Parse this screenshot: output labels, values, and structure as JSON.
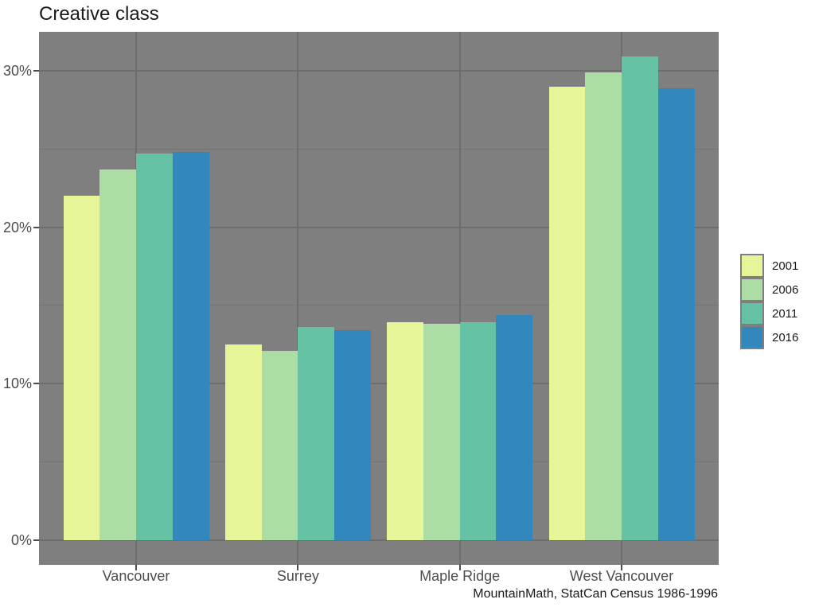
{
  "title": "Creative class",
  "caption": "MountainMath, StatCan Census 1986-1996",
  "colors": {
    "outer_bg": "#FFFFFF",
    "panel_bg": "#7F7F7F",
    "grid_major": "#6D6D6D",
    "grid_minor": "#747474",
    "axis_text": "#4D4D4D",
    "tick_mark": "#4D4D4D",
    "title_text": "#1A1A1A",
    "caption_text": "#1A1A1A",
    "legend_text": "#1A1A1A"
  },
  "chart_data": {
    "type": "bar",
    "title": "Creative class",
    "xlabel": "",
    "ylabel": "",
    "categories": [
      "Vancouver",
      "Surrey",
      "Maple Ridge",
      "West Vancouver"
    ],
    "series": [
      {
        "name": "2001",
        "color": "#E6F598",
        "values": [
          22.0,
          12.5,
          13.9,
          29.0
        ]
      },
      {
        "name": "2006",
        "color": "#ABDDA4",
        "values": [
          23.7,
          12.1,
          13.8,
          29.9
        ]
      },
      {
        "name": "2011",
        "color": "#66C2A5",
        "values": [
          24.7,
          13.6,
          13.9,
          30.9
        ]
      },
      {
        "name": "2016",
        "color": "#3288BD",
        "values": [
          24.8,
          13.4,
          14.4,
          28.9
        ]
      }
    ],
    "y_ticks": [
      {
        "value": 0,
        "label": "0%"
      },
      {
        "value": 10,
        "label": "10%"
      },
      {
        "value": 20,
        "label": "20%"
      },
      {
        "value": 30,
        "label": "30%"
      }
    ],
    "y_minor": [
      5,
      15,
      25
    ],
    "ylim": [
      -1.6,
      32.5
    ],
    "grid": true,
    "legend_position": "right",
    "legend_title": ""
  }
}
